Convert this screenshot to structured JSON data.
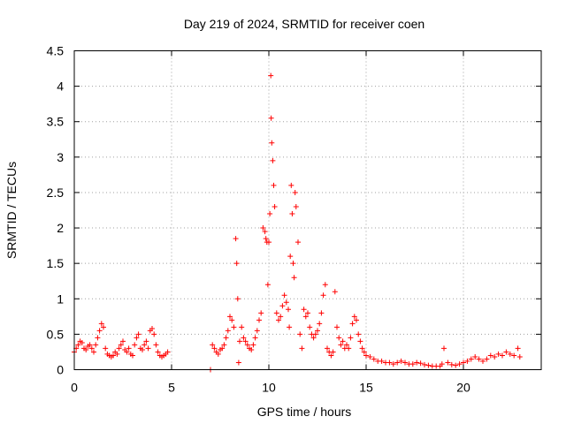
{
  "chart_data": {
    "type": "scatter",
    "title": "Day 219 of 2024, SRMTID for receiver coen",
    "xlabel": "GPS time / hours",
    "ylabel": "SRMTID / TECUs",
    "xlim": [
      0,
      24
    ],
    "ylim": [
      0,
      4.5
    ],
    "xticks": [
      0,
      5,
      10,
      15,
      20
    ],
    "xtick_labels": [
      "0",
      "5",
      "10",
      "15",
      "20"
    ],
    "yticks": [
      0,
      0.5,
      1,
      1.5,
      2,
      2.5,
      3,
      3.5,
      4,
      4.5
    ],
    "ytick_labels": [
      "0",
      "0.5",
      "1",
      "1.5",
      "2",
      "2.5",
      "3",
      "3.5",
      "4",
      "4.5"
    ],
    "grid": true,
    "marker": "plus",
    "marker_color": "#ff0000",
    "series": [
      {
        "name": "SRMTID",
        "x": [
          0.0,
          0.1,
          0.2,
          0.3,
          0.4,
          0.5,
          0.6,
          0.7,
          0.8,
          0.9,
          1.0,
          1.1,
          1.2,
          1.3,
          1.4,
          1.5,
          1.6,
          1.7,
          1.8,
          1.9,
          2.0,
          2.1,
          2.2,
          2.3,
          2.4,
          2.5,
          2.6,
          2.7,
          2.8,
          2.9,
          3.0,
          3.1,
          3.2,
          3.3,
          3.4,
          3.5,
          3.6,
          3.7,
          3.8,
          3.9,
          4.0,
          4.1,
          4.2,
          4.3,
          4.4,
          4.5,
          4.6,
          4.7,
          4.8,
          7.0,
          7.1,
          7.2,
          7.3,
          7.4,
          7.5,
          7.6,
          7.7,
          7.8,
          7.9,
          8.0,
          8.1,
          8.2,
          8.3,
          8.35,
          8.4,
          8.45,
          8.5,
          8.6,
          8.7,
          8.8,
          8.9,
          9.0,
          9.1,
          9.2,
          9.3,
          9.4,
          9.5,
          9.6,
          9.7,
          9.8,
          9.85,
          9.9,
          9.95,
          10.0,
          10.05,
          10.1,
          10.12,
          10.15,
          10.2,
          10.25,
          10.3,
          10.4,
          10.5,
          10.6,
          10.7,
          10.8,
          10.9,
          11.0,
          11.05,
          11.1,
          11.15,
          11.2,
          11.25,
          11.3,
          11.35,
          11.4,
          11.5,
          11.6,
          11.7,
          11.8,
          11.9,
          12.0,
          12.1,
          12.2,
          12.3,
          12.4,
          12.5,
          12.6,
          12.7,
          12.8,
          12.9,
          13.0,
          13.1,
          13.2,
          13.3,
          13.4,
          13.5,
          13.6,
          13.7,
          13.8,
          13.9,
          14.0,
          14.1,
          14.2,
          14.3,
          14.4,
          14.5,
          14.6,
          14.7,
          14.8,
          14.9,
          15.0,
          15.2,
          15.4,
          15.6,
          15.8,
          16.0,
          16.2,
          16.4,
          16.6,
          16.8,
          17.0,
          17.2,
          17.4,
          17.6,
          17.8,
          18.0,
          18.2,
          18.4,
          18.6,
          18.8,
          18.9,
          19.0,
          19.2,
          19.4,
          19.6,
          19.8,
          20.0,
          20.2,
          20.4,
          20.6,
          20.8,
          21.0,
          21.2,
          21.4,
          21.6,
          21.8,
          22.0,
          22.2,
          22.4,
          22.6,
          22.8,
          22.9
        ],
        "y": [
          0.25,
          0.3,
          0.35,
          0.4,
          0.38,
          0.3,
          0.28,
          0.33,
          0.35,
          0.3,
          0.25,
          0.35,
          0.45,
          0.55,
          0.65,
          0.6,
          0.3,
          0.22,
          0.2,
          0.18,
          0.2,
          0.25,
          0.22,
          0.3,
          0.35,
          0.4,
          0.28,
          0.25,
          0.3,
          0.22,
          0.2,
          0.35,
          0.45,
          0.5,
          0.3,
          0.28,
          0.35,
          0.4,
          0.3,
          0.55,
          0.58,
          0.5,
          0.35,
          0.25,
          0.2,
          0.18,
          0.2,
          0.22,
          0.25,
          0.0,
          0.35,
          0.3,
          0.25,
          0.22,
          0.28,
          0.3,
          0.35,
          0.45,
          0.55,
          0.75,
          0.7,
          0.6,
          1.85,
          1.5,
          1.0,
          0.1,
          0.4,
          0.6,
          0.45,
          0.4,
          0.35,
          0.3,
          0.28,
          0.35,
          0.45,
          0.55,
          0.7,
          0.8,
          2.0,
          1.95,
          1.85,
          1.8,
          1.2,
          1.8,
          2.2,
          4.15,
          3.55,
          3.2,
          2.95,
          2.6,
          2.3,
          0.8,
          0.7,
          0.75,
          0.9,
          1.05,
          0.95,
          0.85,
          0.6,
          1.6,
          2.6,
          2.2,
          1.5,
          1.3,
          2.5,
          2.3,
          1.8,
          0.5,
          0.3,
          0.85,
          0.75,
          0.8,
          0.6,
          0.5,
          0.45,
          0.5,
          0.55,
          0.65,
          0.8,
          1.05,
          1.2,
          0.3,
          0.25,
          0.2,
          0.25,
          1.1,
          0.6,
          0.45,
          0.35,
          0.4,
          0.3,
          0.35,
          0.3,
          0.45,
          0.65,
          0.75,
          0.7,
          0.5,
          0.4,
          0.3,
          0.25,
          0.2,
          0.18,
          0.15,
          0.12,
          0.12,
          0.1,
          0.1,
          0.08,
          0.1,
          0.12,
          0.1,
          0.08,
          0.08,
          0.1,
          0.09,
          0.07,
          0.06,
          0.05,
          0.05,
          0.05,
          0.08,
          0.3,
          0.1,
          0.07,
          0.06,
          0.08,
          0.1,
          0.12,
          0.15,
          0.18,
          0.15,
          0.12,
          0.15,
          0.2,
          0.18,
          0.22,
          0.2,
          0.25,
          0.22,
          0.2,
          0.3,
          0.18
        ]
      }
    ]
  }
}
